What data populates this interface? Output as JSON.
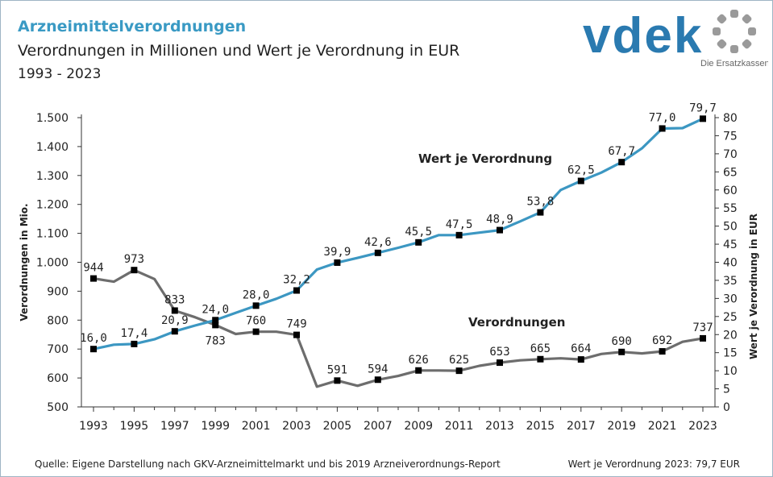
{
  "header": {
    "title": "Arzneimittelverordnungen",
    "subtitle": "Verordnungen in Millionen und Wert je Verordnung in EUR",
    "range": "1993 - 2023"
  },
  "logo": {
    "wordmark": "vdek",
    "tagline": "Die Ersatzkassen",
    "color": "#2a7ab0",
    "dot_color": "#9a9a9a"
  },
  "footer": {
    "source": "Quelle: Eigene Darstellung nach GKV-Arzneimittelmarkt und bis 2019 Arzneiverordnungs-Report",
    "note": "Wert je Verordnung 2023: 79,7 EUR"
  },
  "chart_data": {
    "type": "line",
    "x_ticks": [
      "1993",
      "1995",
      "1997",
      "1999",
      "2001",
      "2003",
      "2005",
      "2007",
      "2009",
      "2011",
      "2013",
      "2015",
      "2017",
      "2019",
      "2021",
      "2023"
    ],
    "xlim": [
      1993,
      2023
    ],
    "y_left": {
      "label": "Verordnungen in Mio.",
      "lim": [
        500,
        1500
      ],
      "ticks": [
        "500",
        "600",
        "700",
        "800",
        "900",
        "1.000",
        "1.100",
        "1.200",
        "1.300",
        "1.400",
        "1.500"
      ]
    },
    "y_right": {
      "label": "Wert je Verordnung in EUR",
      "lim": [
        0,
        80
      ],
      "ticks": [
        "0",
        "5",
        "10",
        "15",
        "20",
        "25",
        "30",
        "35",
        "40",
        "45",
        "50",
        "55",
        "60",
        "65",
        "70",
        "75",
        "80"
      ]
    },
    "series": [
      {
        "name": "Verordnungen",
        "axis": "left",
        "color": "#6d6d6d",
        "x": [
          1993,
          1994,
          1995,
          1996,
          1997,
          1998,
          1999,
          2000,
          2001,
          2002,
          2003,
          2004,
          2005,
          2006,
          2007,
          2008,
          2009,
          2010,
          2011,
          2012,
          2013,
          2014,
          2015,
          2016,
          2017,
          2018,
          2019,
          2020,
          2021,
          2022,
          2023
        ],
        "y": [
          944,
          933,
          973,
          942,
          833,
          810,
          783,
          752,
          760,
          760,
          749,
          570,
          591,
          573,
          594,
          607,
          626,
          626,
          625,
          642,
          653,
          661,
          665,
          668,
          664,
          683,
          690,
          685,
          692,
          725,
          737
        ],
        "labeled_x": [
          1993,
          1995,
          1997,
          1999,
          2001,
          2003,
          2005,
          2007,
          2009,
          2011,
          2013,
          2015,
          2017,
          2019,
          2021,
          2023
        ],
        "labels": [
          "944",
          "973",
          "833",
          "783",
          "760",
          "749",
          "591",
          "594",
          "626",
          "625",
          "653",
          "665",
          "664",
          "690",
          "692",
          "737"
        ]
      },
      {
        "name": "Wert je Verordnung",
        "axis": "right",
        "color": "#3c97c2",
        "x": [
          1993,
          1994,
          1995,
          1996,
          1997,
          1998,
          1999,
          2000,
          2001,
          2002,
          2003,
          2004,
          2005,
          2006,
          2007,
          2008,
          2009,
          2010,
          2011,
          2012,
          2013,
          2014,
          2015,
          2016,
          2017,
          2018,
          2019,
          2020,
          2021,
          2022,
          2023
        ],
        "y": [
          16.0,
          17.2,
          17.4,
          18.7,
          20.9,
          22.5,
          24.0,
          26.0,
          28.0,
          29.9,
          32.2,
          38.0,
          39.9,
          41.2,
          42.6,
          44.0,
          45.5,
          47.5,
          47.5,
          48.2,
          48.9,
          51.3,
          53.8,
          60.0,
          62.5,
          64.8,
          67.7,
          71.5,
          77.0,
          77.1,
          79.7
        ],
        "labeled_x": [
          1993,
          1995,
          1997,
          1999,
          2001,
          2003,
          2005,
          2007,
          2009,
          2011,
          2013,
          2015,
          2017,
          2019,
          2021,
          2023
        ],
        "labels": [
          "16,0",
          "17,4",
          "20,9",
          "24,0",
          "28,0",
          "32,2",
          "39,9",
          "42,6",
          "45,5",
          "47,5",
          "48,9",
          "53,8",
          "62,5",
          "67,7",
          "77,0",
          "79,7"
        ]
      }
    ]
  }
}
